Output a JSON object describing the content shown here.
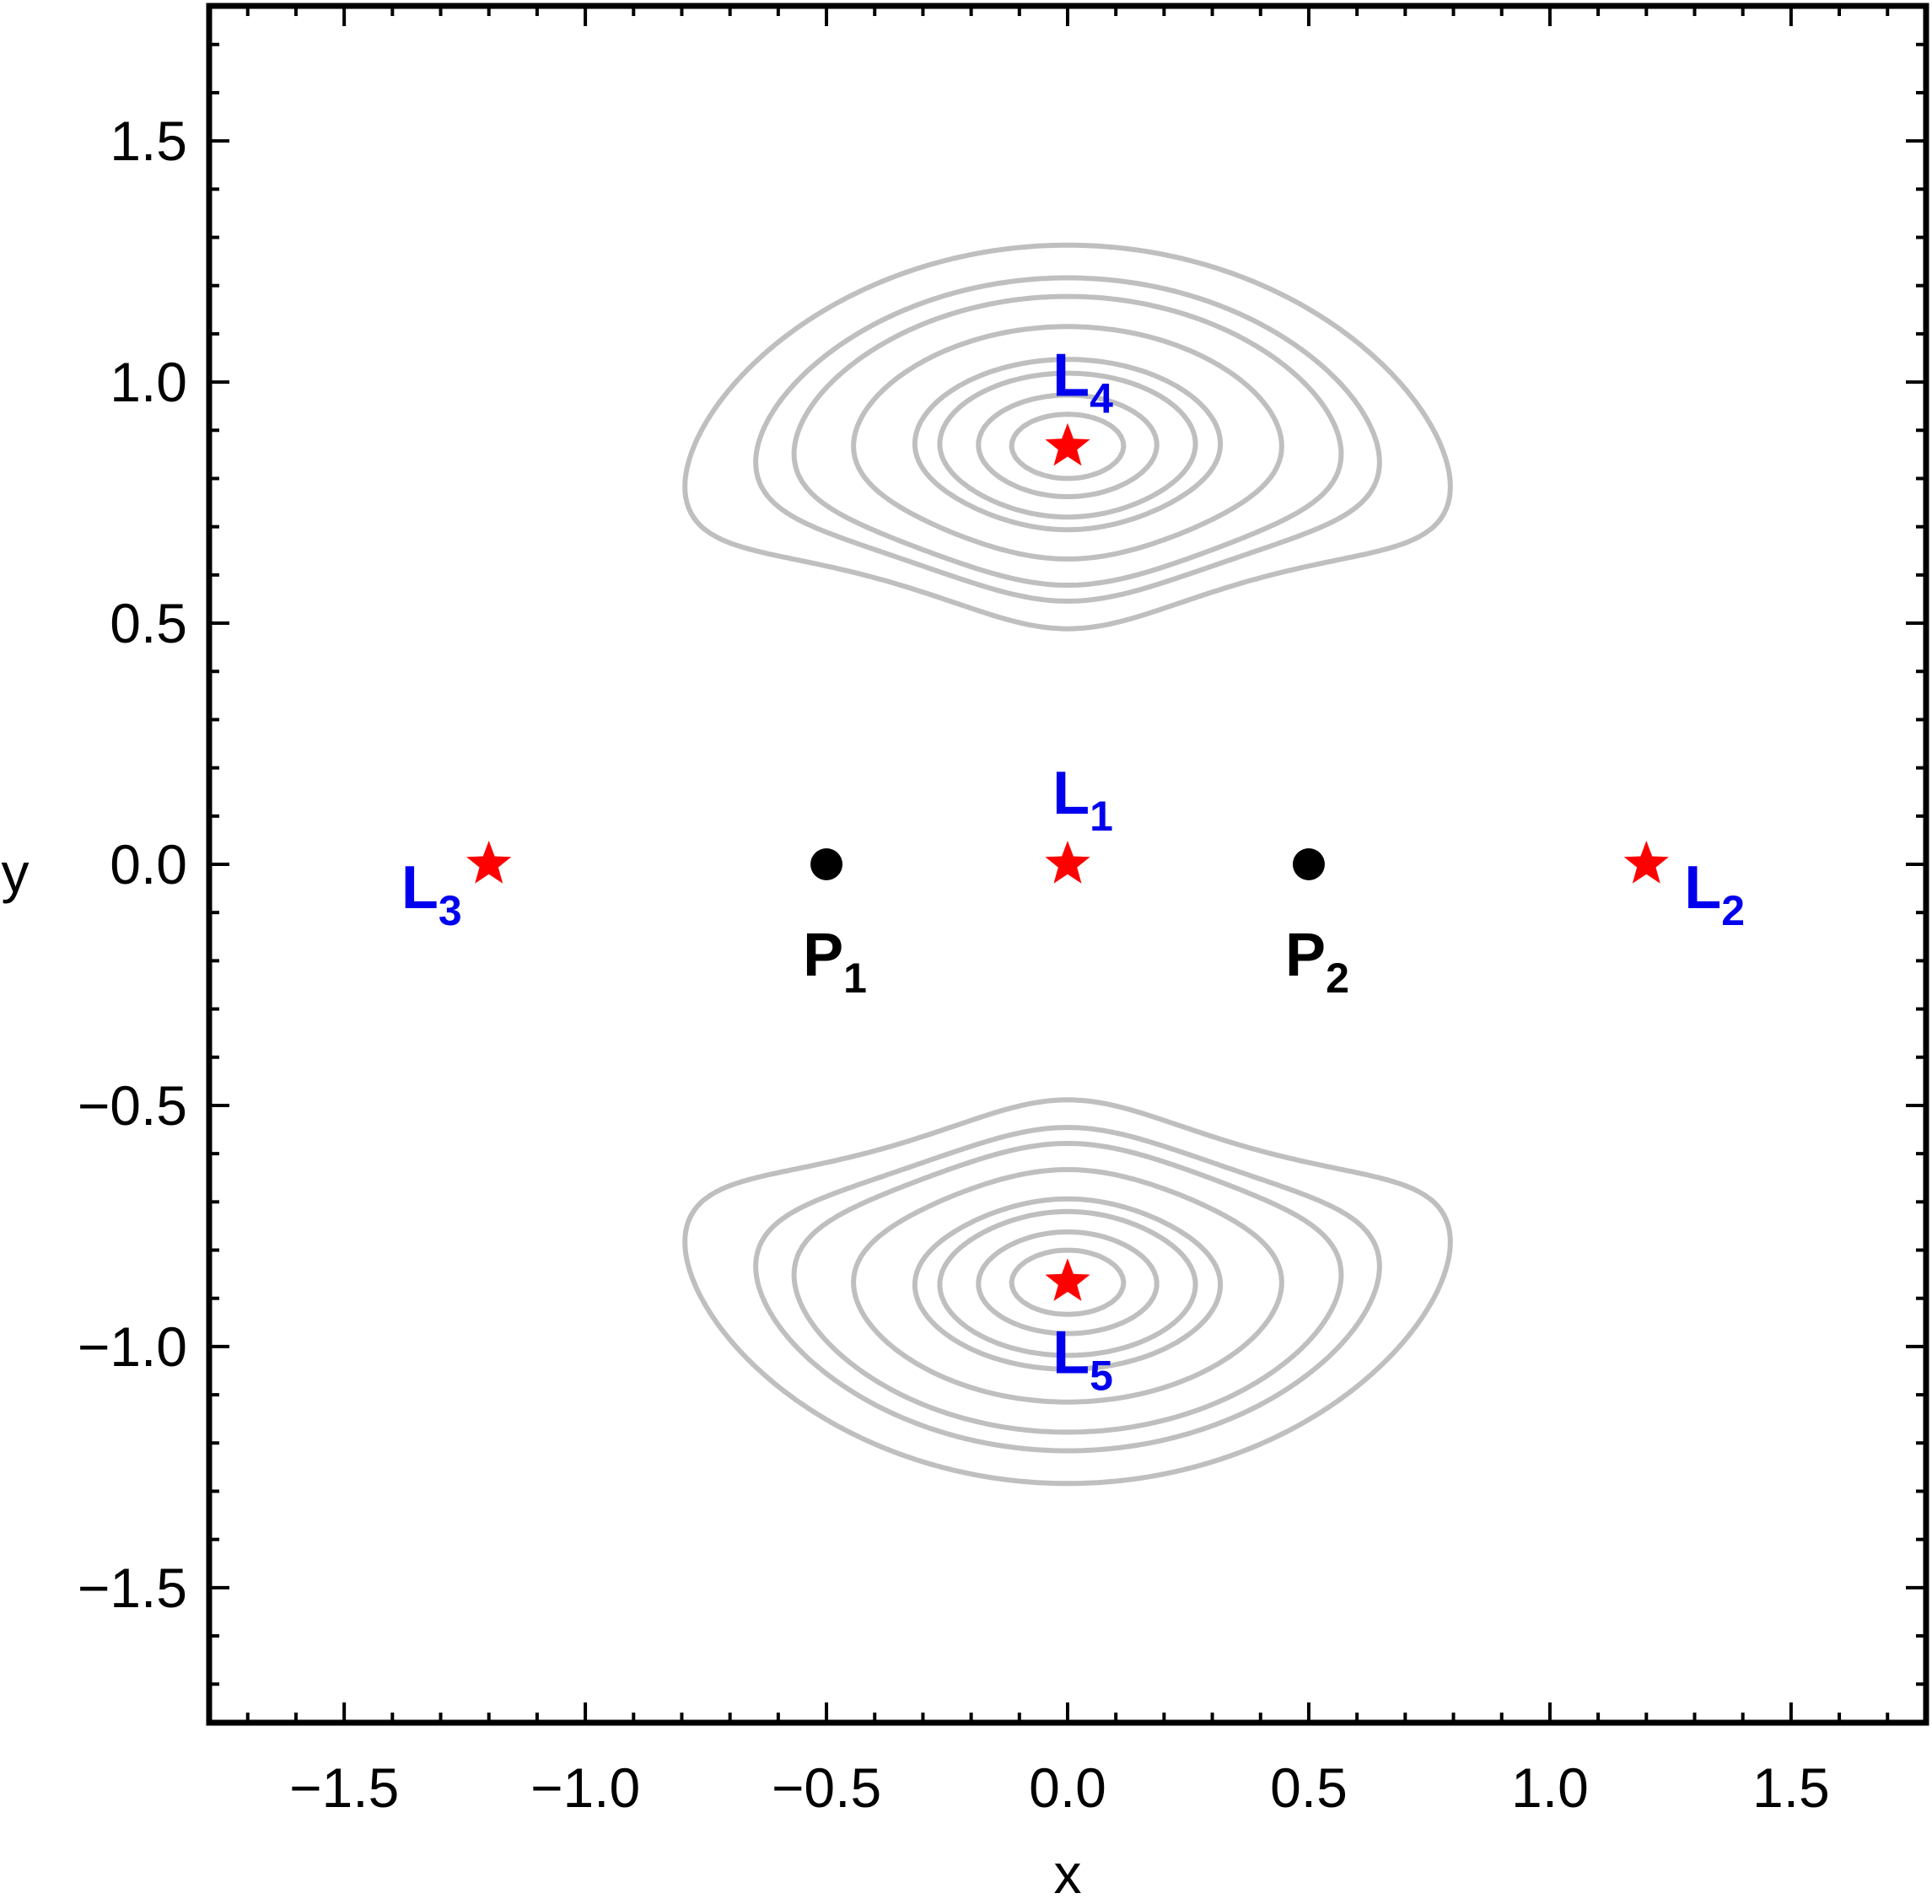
{
  "chart_data": {
    "type": "contour",
    "title": "",
    "xlabel": "x",
    "ylabel": "y",
    "xlim": [
      -1.78,
      1.78
    ],
    "ylim": [
      -1.78,
      1.78
    ],
    "x_ticks": [
      {
        "value": -1.5,
        "label": "−1.5"
      },
      {
        "value": -1.0,
        "label": "−1.0"
      },
      {
        "value": -0.5,
        "label": "−0.5"
      },
      {
        "value": 0.0,
        "label": "0.0"
      },
      {
        "value": 0.5,
        "label": "0.5"
      },
      {
        "value": 1.0,
        "label": "1.0"
      },
      {
        "value": 1.5,
        "label": "1.5"
      }
    ],
    "y_ticks": [
      {
        "value": 1.5,
        "label": "1.5"
      },
      {
        "value": 1.0,
        "label": "1.0"
      },
      {
        "value": 0.5,
        "label": "0.5"
      },
      {
        "value": 0.0,
        "label": "0.0"
      },
      {
        "value": -0.5,
        "label": "−0.5"
      },
      {
        "value": -1.0,
        "label": "−1.0"
      },
      {
        "value": -1.5,
        "label": "−1.5"
      }
    ],
    "grid": false,
    "contour_color": "#bfbfbf",
    "contour_levels": [
      3.1,
      3.0,
      2.95,
      2.88,
      2.82,
      2.8,
      2.775,
      2.76,
      2.74,
      2.72,
      2.69,
      2.66,
      2.63,
      2.6,
      2.57,
      2.54,
      2.5,
      2.45,
      2.4,
      2.35,
      2.3,
      2.2
    ],
    "primaries": [
      {
        "label": "P",
        "sub": "1",
        "x": -0.5,
        "y": 0.0,
        "color": "#000000",
        "label_pos": "below"
      },
      {
        "label": "P",
        "sub": "2",
        "x": 0.5,
        "y": 0.0,
        "color": "#000000",
        "label_pos": "below"
      }
    ],
    "lagrange_points": [
      {
        "label": "L",
        "sub": "1",
        "x": 0.0,
        "y": 0.0,
        "label_pos": "above"
      },
      {
        "label": "L",
        "sub": "2",
        "x": 1.2,
        "y": 0.0,
        "label_pos": "right"
      },
      {
        "label": "L",
        "sub": "3",
        "x": -1.2,
        "y": 0.0,
        "label_pos": "left"
      },
      {
        "label": "L",
        "sub": "4",
        "x": 0.0,
        "y": 0.866,
        "label_pos": "above"
      },
      {
        "label": "L",
        "sub": "5",
        "x": 0.0,
        "y": -0.866,
        "label_pos": "below"
      }
    ],
    "marker_color": "#ff0000",
    "label_color": "#0000ee"
  }
}
